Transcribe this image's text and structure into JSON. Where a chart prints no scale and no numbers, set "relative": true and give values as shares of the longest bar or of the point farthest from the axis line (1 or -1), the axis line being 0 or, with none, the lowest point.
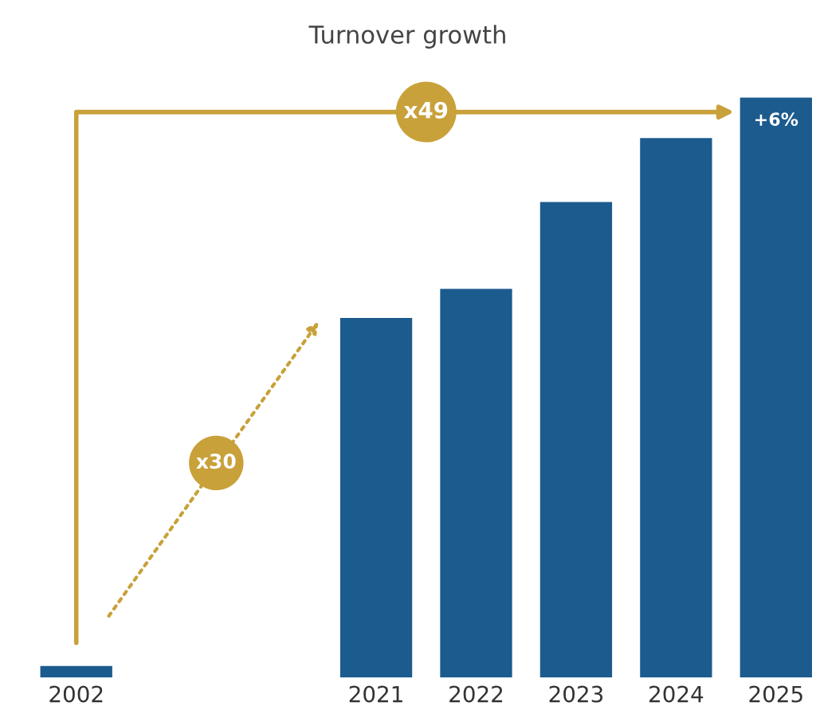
{
  "chart_data": {
    "type": "bar",
    "title": "Turnover growth",
    "relative": true,
    "categories": [
      "2002",
      null,
      null,
      "2021",
      "2022",
      "2023",
      "2024",
      "2025"
    ],
    "values": [
      0.02,
      null,
      null,
      0.62,
      0.67,
      0.82,
      0.93,
      1
    ],
    "color": "#1c5b8e",
    "annotations": [
      "x49",
      "x30",
      "+6%"
    ],
    "grid": false,
    "legend": false
  }
}
